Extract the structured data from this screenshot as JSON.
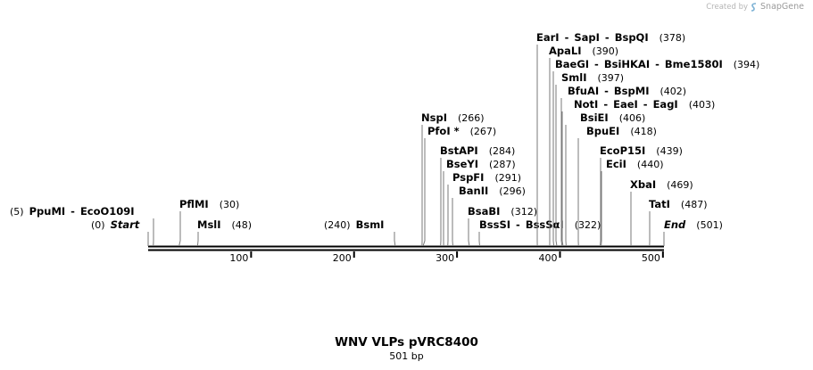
{
  "credit": {
    "prefix": "Created by",
    "brand": "SnapGene"
  },
  "title": "WNV VLPs pVRC8400",
  "subtitle": "501 bp",
  "map": {
    "length": 501,
    "ticks": [
      100,
      200,
      300,
      400,
      500
    ],
    "features": [
      {
        "parts": [
          {
            "text": "(5)",
            "kind": "pos"
          },
          {
            "text": "PpuMI",
            "kind": "name"
          },
          {
            "text": "-",
            "kind": "sep"
          },
          {
            "text": "EcoO109I",
            "kind": "name"
          }
        ],
        "site": 5
      },
      {
        "parts": [
          {
            "text": "(0)",
            "kind": "pos"
          },
          {
            "text": "Start",
            "kind": "ital"
          }
        ],
        "site": 0
      },
      {
        "parts": [
          {
            "text": "PflMI",
            "kind": "name"
          },
          {
            "text": "(30)",
            "kind": "pos"
          }
        ],
        "site": 30
      },
      {
        "parts": [
          {
            "text": "MslI",
            "kind": "name"
          },
          {
            "text": "(48)",
            "kind": "pos"
          }
        ],
        "site": 48
      },
      {
        "parts": [
          {
            "text": "(240)",
            "kind": "pos"
          },
          {
            "text": "BsmI",
            "kind": "name"
          }
        ],
        "site": 240
      },
      {
        "parts": [
          {
            "text": "NspI",
            "kind": "name"
          },
          {
            "text": "(266)",
            "kind": "pos"
          }
        ],
        "site": 266
      },
      {
        "parts": [
          {
            "text": "PfoI *",
            "kind": "name"
          },
          {
            "text": "(267)",
            "kind": "pos"
          }
        ],
        "site": 267
      },
      {
        "parts": [
          {
            "text": "BstAPI",
            "kind": "name"
          },
          {
            "text": "(284)",
            "kind": "pos"
          }
        ],
        "site": 284
      },
      {
        "parts": [
          {
            "text": "BseYI",
            "kind": "name"
          },
          {
            "text": "(287)",
            "kind": "pos"
          }
        ],
        "site": 287
      },
      {
        "parts": [
          {
            "text": "PspFI",
            "kind": "name"
          },
          {
            "text": "(291)",
            "kind": "pos"
          }
        ],
        "site": 291
      },
      {
        "parts": [
          {
            "text": "BanII",
            "kind": "name"
          },
          {
            "text": "(296)",
            "kind": "pos"
          }
        ],
        "site": 296
      },
      {
        "parts": [
          {
            "text": "BsaBI",
            "kind": "name"
          },
          {
            "text": "(312)",
            "kind": "pos"
          }
        ],
        "site": 312
      },
      {
        "parts": [
          {
            "text": "BssSI",
            "kind": "name"
          },
          {
            "text": "-",
            "kind": "sep"
          },
          {
            "text": "BssSαI",
            "kind": "name"
          },
          {
            "text": "(322)",
            "kind": "pos"
          }
        ],
        "site": 322
      },
      {
        "parts": [
          {
            "text": "EarI",
            "kind": "name"
          },
          {
            "text": "-",
            "kind": "sep"
          },
          {
            "text": "SapI",
            "kind": "name"
          },
          {
            "text": "-",
            "kind": "sep"
          },
          {
            "text": "BspQI",
            "kind": "name"
          },
          {
            "text": "(378)",
            "kind": "pos"
          }
        ],
        "site": 378
      },
      {
        "parts": [
          {
            "text": "ApaLI",
            "kind": "name"
          },
          {
            "text": "(390)",
            "kind": "pos"
          }
        ],
        "site": 390
      },
      {
        "parts": [
          {
            "text": "BaeGI",
            "kind": "name"
          },
          {
            "text": "-",
            "kind": "sep"
          },
          {
            "text": "BsiHKAI",
            "kind": "name"
          },
          {
            "text": "-",
            "kind": "sep"
          },
          {
            "text": "Bme1580I",
            "kind": "name"
          },
          {
            "text": "(394)",
            "kind": "pos"
          }
        ],
        "site": 394
      },
      {
        "parts": [
          {
            "text": "SmlI",
            "kind": "name"
          },
          {
            "text": "(397)",
            "kind": "pos"
          }
        ],
        "site": 397
      },
      {
        "parts": [
          {
            "text": "BfuAI",
            "kind": "name"
          },
          {
            "text": "-",
            "kind": "sep"
          },
          {
            "text": "BspMI",
            "kind": "name"
          },
          {
            "text": "(402)",
            "kind": "pos"
          }
        ],
        "site": 402
      },
      {
        "parts": [
          {
            "text": "NotI",
            "kind": "name"
          },
          {
            "text": "-",
            "kind": "sep"
          },
          {
            "text": "EaeI",
            "kind": "name"
          },
          {
            "text": "-",
            "kind": "sep"
          },
          {
            "text": "EagI",
            "kind": "name"
          },
          {
            "text": "(403)",
            "kind": "pos"
          }
        ],
        "site": 403
      },
      {
        "parts": [
          {
            "text": "BsiEI",
            "kind": "name"
          },
          {
            "text": "(406)",
            "kind": "pos"
          }
        ],
        "site": 406
      },
      {
        "parts": [
          {
            "text": "BpuEI",
            "kind": "name"
          },
          {
            "text": "(418)",
            "kind": "pos"
          }
        ],
        "site": 418
      },
      {
        "parts": [
          {
            "text": "EcoP15I",
            "kind": "name"
          },
          {
            "text": "(439)",
            "kind": "pos"
          }
        ],
        "site": 439
      },
      {
        "parts": [
          {
            "text": "EciI",
            "kind": "name"
          },
          {
            "text": "(440)",
            "kind": "pos"
          }
        ],
        "site": 440
      },
      {
        "parts": [
          {
            "text": "XbaI",
            "kind": "name"
          },
          {
            "text": "(469)",
            "kind": "pos"
          }
        ],
        "site": 469
      },
      {
        "parts": [
          {
            "text": "TatI",
            "kind": "name"
          },
          {
            "text": "(487)",
            "kind": "pos"
          }
        ],
        "site": 487
      },
      {
        "parts": [
          {
            "text": "End",
            "kind": "ital"
          },
          {
            "text": "(501)",
            "kind": "pos"
          }
        ],
        "site": 501
      }
    ]
  }
}
